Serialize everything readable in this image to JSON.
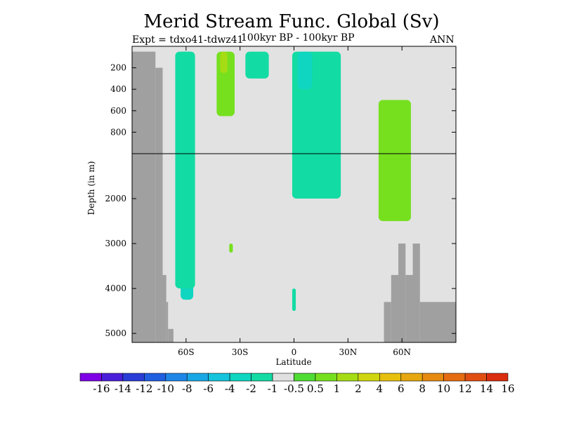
{
  "chart_data": {
    "type": "heatmap",
    "title": "Merid Stream Func. Global (Sv)",
    "experiment": "Expt = tdxo41-tdwz41",
    "period": "100kyr BP - 100kyr BP",
    "season": "ANN",
    "xlabel": "Latitude",
    "ylabel": "Depth (in m)",
    "xlim": [
      -90,
      90
    ],
    "ylim": [
      5200,
      0
    ],
    "x_ticks": [
      {
        "label": "60S",
        "value": -60
      },
      {
        "label": "30S",
        "value": -30
      },
      {
        "label": "0",
        "value": 0
      },
      {
        "label": "30N",
        "value": 30
      },
      {
        "label": "60N",
        "value": 60
      }
    ],
    "y_ticks_upper": [
      {
        "label": "200",
        "value": 200
      },
      {
        "label": "400",
        "value": 400
      },
      {
        "label": "600",
        "value": 600
      },
      {
        "label": "800",
        "value": 800
      }
    ],
    "y_ticks_lower": [
      {
        "label": "2000",
        "value": 2000
      },
      {
        "label": "3000",
        "value": 3000
      },
      {
        "label": "4000",
        "value": 4000
      },
      {
        "label": "5000",
        "value": 5000
      }
    ],
    "axis_break_depth": 1000,
    "colorbar": {
      "labels": [
        "-16",
        "-14",
        "-12",
        "-10",
        "-8",
        "-6",
        "-4",
        "-2",
        "-1",
        "-0.5",
        "0.5",
        "1",
        "2",
        "4",
        "6",
        "8",
        "10",
        "12",
        "14",
        "16"
      ],
      "colors": [
        "#7f00e6",
        "#4a1fd9",
        "#2a3dd6",
        "#1f5fe0",
        "#1e86e6",
        "#1aa7e6",
        "#14c3dc",
        "#0fd6c0",
        "#13dba4",
        "#e0e0e0",
        "#4fdc33",
        "#76e01f",
        "#a6dc14",
        "#cfd60f",
        "#e6c00d",
        "#e6a70f",
        "#e68a12",
        "#e66c12",
        "#e04e12",
        "#d92d0d"
      ]
    },
    "regions": [
      {
        "name": "southern-ocean-cell",
        "level": "-2",
        "lat": [
          -63,
          -56
        ],
        "depth": [
          50,
          4250
        ]
      },
      {
        "name": "southern-ocean-cell-edge",
        "level": "-1",
        "lat": [
          -66,
          -55
        ],
        "depth": [
          50,
          4000
        ]
      },
      {
        "name": "southern-positive-cell",
        "level": "1",
        "lat": [
          -43,
          -33
        ],
        "depth": [
          50,
          650
        ]
      },
      {
        "name": "southern-positive-core",
        "level": "2",
        "lat": [
          -41,
          -37
        ],
        "depth": [
          50,
          250
        ]
      },
      {
        "name": "tropical-negative-cell",
        "level": "-1",
        "lat": [
          -27,
          -14
        ],
        "depth": [
          50,
          300
        ]
      },
      {
        "name": "equatorial-negative-cell",
        "level": "-1",
        "lat": [
          -1,
          26
        ],
        "depth": [
          50,
          2000
        ]
      },
      {
        "name": "equatorial-core",
        "level": "-2",
        "lat": [
          2,
          10
        ],
        "depth": [
          50,
          400
        ]
      },
      {
        "name": "north-atlantic-cell",
        "level": "1",
        "lat": [
          47,
          65
        ],
        "depth": [
          500,
          2500
        ]
      },
      {
        "name": "bottom-isolated-positive",
        "level": "1",
        "lat": [
          -36,
          -34
        ],
        "depth": [
          3000,
          3200
        ]
      },
      {
        "name": "deep-equatorial-negative",
        "level": "-1",
        "lat": [
          -1,
          1
        ],
        "depth": [
          4000,
          4500
        ]
      }
    ],
    "land_mask": [
      {
        "name": "antarctic-shelf",
        "lat": [
          -90,
          -77
        ],
        "depth": [
          50,
          5200
        ]
      },
      {
        "name": "antarctic-slope-1",
        "lat": [
          -77,
          -73
        ],
        "depth": [
          200,
          5200
        ]
      },
      {
        "name": "antarctic-slope-2",
        "lat": [
          -73,
          -71
        ],
        "depth": [
          3700,
          5200
        ]
      },
      {
        "name": "antarctic-slope-3",
        "lat": [
          -71,
          -70
        ],
        "depth": [
          4300,
          5200
        ]
      },
      {
        "name": "antarctic-slope-4",
        "lat": [
          -70,
          -67
        ],
        "depth": [
          4900,
          5200
        ]
      },
      {
        "name": "arctic-ridge-1",
        "lat": [
          50,
          54
        ],
        "depth": [
          4300,
          5200
        ]
      },
      {
        "name": "arctic-ridge-2",
        "lat": [
          54,
          58
        ],
        "depth": [
          3700,
          5200
        ]
      },
      {
        "name": "arctic-ridge-3",
        "lat": [
          58,
          62
        ],
        "depth": [
          3000,
          5200
        ]
      },
      {
        "name": "arctic-ridge-4",
        "lat": [
          62,
          66
        ],
        "depth": [
          3700,
          5200
        ]
      },
      {
        "name": "arctic-ridge-5",
        "lat": [
          66,
          70
        ],
        "depth": [
          3000,
          5200
        ]
      },
      {
        "name": "arctic-ridge-6",
        "lat": [
          70,
          90
        ],
        "depth": [
          4300,
          5200
        ]
      }
    ]
  }
}
